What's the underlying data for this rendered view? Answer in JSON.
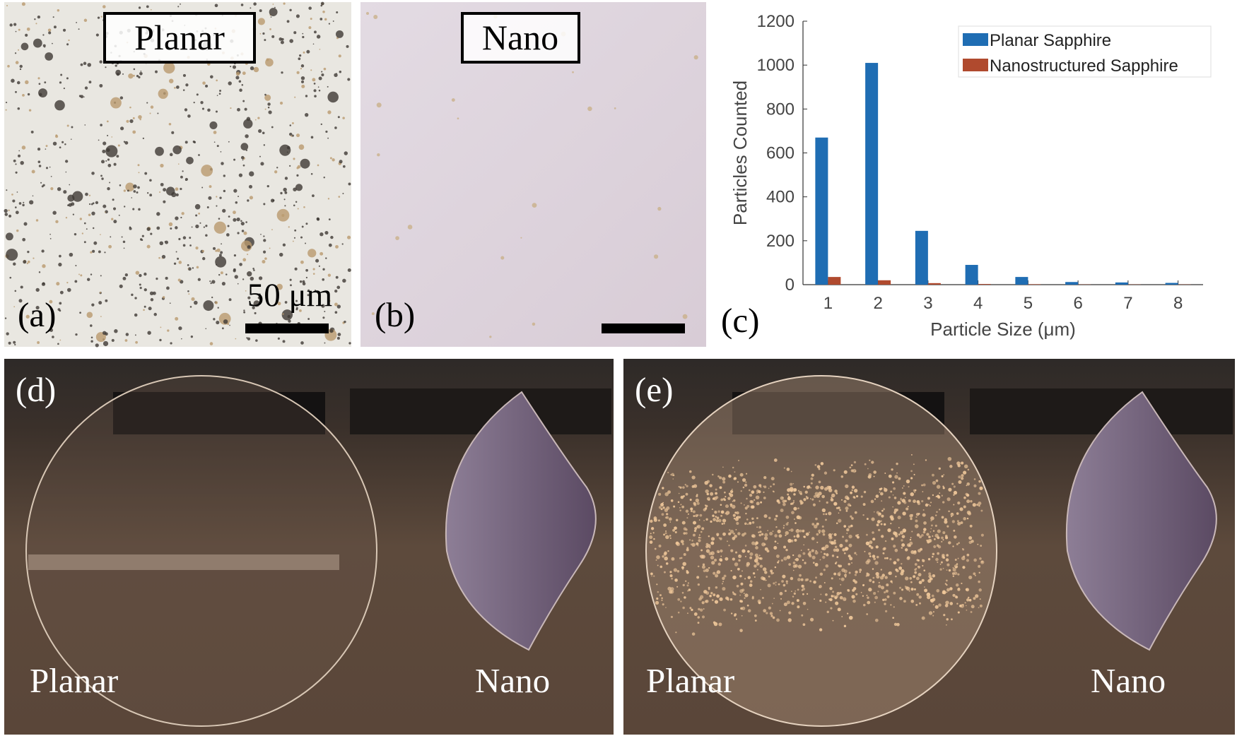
{
  "figure": {
    "panel_a": {
      "label": "(a)",
      "title": "Planar",
      "scale_bar": "50 μm"
    },
    "panel_b": {
      "label": "(b)",
      "title": "Nano"
    },
    "panel_c": {
      "label": "(c)"
    },
    "panel_d": {
      "label": "(d)",
      "left": "Planar",
      "right": "Nano"
    },
    "panel_e": {
      "label": "(e)",
      "left": "Planar",
      "right": "Nano"
    }
  },
  "chart_data": {
    "type": "bar",
    "xlabel": "Particle Size (μm)",
    "ylabel": "Particles Counted",
    "categories": [
      "1",
      "2",
      "3",
      "4",
      "5",
      "6",
      "7",
      "8"
    ],
    "series": [
      {
        "name": "Planar Sapphire",
        "color": "#1f6db3",
        "values": [
          670,
          1010,
          245,
          90,
          35,
          12,
          10,
          8
        ]
      },
      {
        "name": "Nanostructured Sapphire",
        "color": "#b04a2e",
        "values": [
          35,
          20,
          7,
          3,
          2,
          1,
          1,
          1
        ]
      }
    ],
    "ylim": [
      0,
      1200
    ],
    "yticks": [
      0,
      200,
      400,
      600,
      800,
      1000,
      1200
    ],
    "legend": "upper-right",
    "grid": false
  }
}
